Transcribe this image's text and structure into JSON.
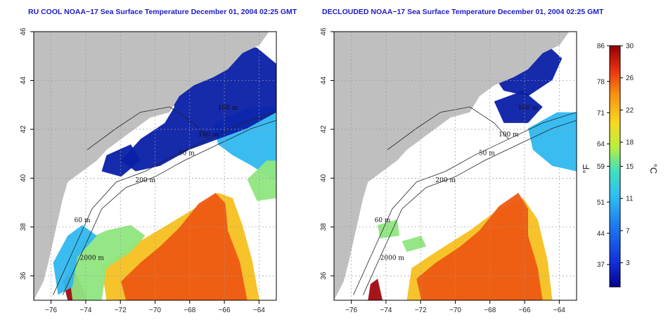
{
  "chart_data": [
    {
      "type": "heatmap",
      "title": "RU COOL NOAA−17 Sea Surface Temperature December 01, 2004 02:25 GMT",
      "x_ticks": [
        "−76",
        "−74",
        "−72",
        "−70",
        "−68",
        "−66",
        "−64"
      ],
      "y_ticks": [
        "36",
        "38",
        "40",
        "42",
        "44",
        "46"
      ],
      "xlim": [
        -77,
        -63
      ],
      "ylim": [
        35,
        46
      ],
      "grid": true,
      "isobath_labels": [
        "100 m",
        "100 m",
        "50 m",
        "200 m",
        "60 m",
        "2000 m"
      ]
    },
    {
      "type": "heatmap",
      "title": "DECLOUDED NOAA−17 Sea Surface Temperature December 01, 2004 02:25 GMT",
      "x_ticks": [
        "−76",
        "−74",
        "−72",
        "−70",
        "−68",
        "−66",
        "−64"
      ],
      "y_ticks": [
        "36",
        "38",
        "40",
        "42",
        "44",
        "46"
      ],
      "xlim": [
        -77,
        -63
      ],
      "ylim": [
        35,
        46
      ],
      "grid": true,
      "isobath_labels": [
        "100 m",
        "100 m",
        "50 m",
        "200 m",
        "60 m",
        "2000 m"
      ]
    }
  ],
  "colorbar": {
    "fahrenheit_ticks": [
      "86",
      "78",
      "71",
      "64",
      "59",
      "51",
      "44",
      "37"
    ],
    "celsius_ticks": [
      "30",
      "26",
      "22",
      "18",
      "15",
      "11",
      "7",
      "3"
    ],
    "fahrenheit_unit": "°F",
    "celsius_unit": "°C",
    "range_c": [
      0,
      30
    ],
    "colors": {
      "land": "#bfbfbf",
      "cloud": "#ffffff",
      "cold": "#0a1fa8",
      "cool": "#2fb8f0",
      "mid": "#8fe67f",
      "warm": "#f5c020",
      "hot": "#ee5a12",
      "hottest": "#a00810"
    }
  }
}
